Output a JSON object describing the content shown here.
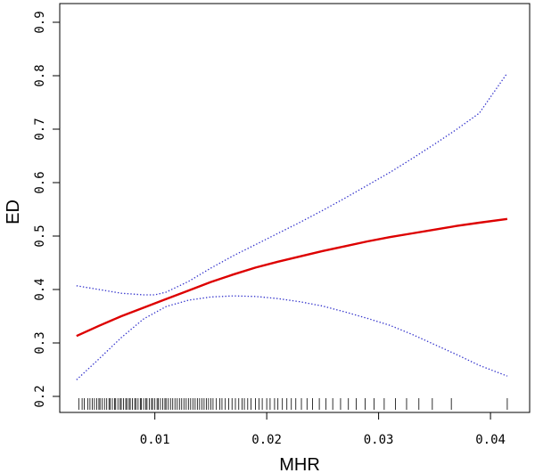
{
  "chart_data": {
    "type": "line",
    "title": "",
    "xlabel": "MHR",
    "ylabel": "ED",
    "xlim": [
      0.0015,
      0.0435
    ],
    "ylim": [
      0.17,
      0.935
    ],
    "xticks": [
      "0.01",
      "0.02",
      "0.03",
      "0.04"
    ],
    "yticks": [
      "0.2",
      "0.3",
      "0.4",
      "0.5",
      "0.6",
      "0.7",
      "0.8",
      "0.9"
    ],
    "grid": false,
    "legend": "none",
    "colors": {
      "fit": "#dd0000",
      "ci": "#3333cc",
      "rug": "#000000"
    },
    "series": [
      {
        "role": "fit",
        "style": "solid",
        "x": [
          0.003,
          0.005,
          0.007,
          0.009,
          0.011,
          0.013,
          0.015,
          0.017,
          0.019,
          0.021,
          0.023,
          0.025,
          0.027,
          0.029,
          0.031,
          0.033,
          0.035,
          0.037,
          0.039,
          0.0415
        ],
        "y": [
          0.313,
          0.332,
          0.35,
          0.366,
          0.382,
          0.398,
          0.414,
          0.428,
          0.441,
          0.452,
          0.462,
          0.472,
          0.481,
          0.49,
          0.498,
          0.505,
          0.512,
          0.519,
          0.525,
          0.532
        ]
      },
      {
        "role": "upper",
        "style": "dotted",
        "x": [
          0.003,
          0.005,
          0.007,
          0.009,
          0.01,
          0.011,
          0.013,
          0.015,
          0.017,
          0.019,
          0.021,
          0.023,
          0.025,
          0.027,
          0.029,
          0.031,
          0.033,
          0.035,
          0.037,
          0.039,
          0.0415
        ],
        "y": [
          0.407,
          0.4,
          0.393,
          0.39,
          0.39,
          0.395,
          0.415,
          0.44,
          0.463,
          0.484,
          0.505,
          0.526,
          0.548,
          0.571,
          0.595,
          0.619,
          0.645,
          0.672,
          0.7,
          0.73,
          0.805
        ]
      },
      {
        "role": "lower",
        "style": "dotted",
        "x": [
          0.003,
          0.005,
          0.007,
          0.009,
          0.011,
          0.013,
          0.015,
          0.017,
          0.019,
          0.021,
          0.023,
          0.025,
          0.027,
          0.029,
          0.031,
          0.033,
          0.035,
          0.037,
          0.039,
          0.0415
        ],
        "y": [
          0.231,
          0.27,
          0.31,
          0.345,
          0.368,
          0.38,
          0.386,
          0.388,
          0.387,
          0.383,
          0.377,
          0.369,
          0.358,
          0.346,
          0.333,
          0.316,
          0.297,
          0.278,
          0.258,
          0.238
        ]
      }
    ],
    "rug_x": [
      0.0032,
      0.0035,
      0.0037,
      0.004,
      0.0042,
      0.0044,
      0.0046,
      0.0048,
      0.005,
      0.0051,
      0.0053,
      0.0055,
      0.0057,
      0.0059,
      0.006,
      0.0062,
      0.0064,
      0.0065,
      0.0067,
      0.0069,
      0.007,
      0.0072,
      0.0074,
      0.0075,
      0.0077,
      0.0078,
      0.008,
      0.0082,
      0.0083,
      0.0085,
      0.0087,
      0.0088,
      0.009,
      0.0092,
      0.0093,
      0.0095,
      0.0097,
      0.0098,
      0.01,
      0.0102,
      0.0103,
      0.0105,
      0.0107,
      0.0109,
      0.011,
      0.0112,
      0.0114,
      0.0116,
      0.0118,
      0.012,
      0.0122,
      0.0124,
      0.0126,
      0.0128,
      0.013,
      0.0132,
      0.0134,
      0.0136,
      0.0138,
      0.014,
      0.0142,
      0.0144,
      0.0146,
      0.0148,
      0.015,
      0.0152,
      0.0155,
      0.0158,
      0.016,
      0.0163,
      0.0166,
      0.0169,
      0.0172,
      0.0175,
      0.0178,
      0.018,
      0.0183,
      0.0186,
      0.019,
      0.0193,
      0.0196,
      0.02,
      0.0203,
      0.0207,
      0.021,
      0.0214,
      0.0218,
      0.0222,
      0.0226,
      0.0231,
      0.0236,
      0.0241,
      0.0247,
      0.0253,
      0.0259,
      0.0266,
      0.0273,
      0.028,
      0.0288,
      0.0296,
      0.0305,
      0.0315,
      0.0325,
      0.0336,
      0.0348,
      0.0365,
      0.0415
    ]
  }
}
